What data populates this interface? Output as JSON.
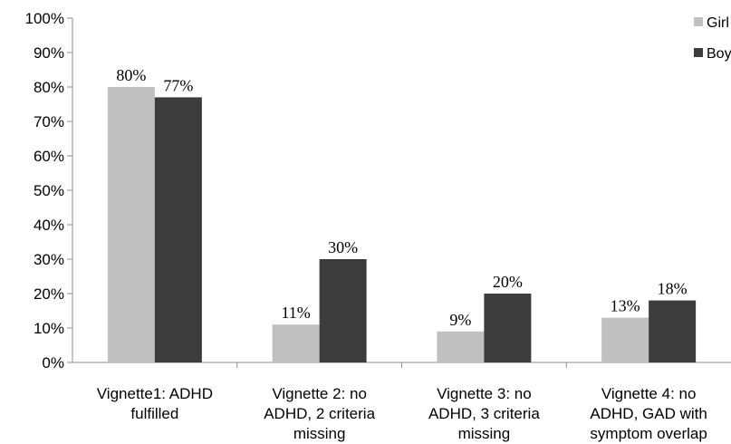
{
  "chart_data": {
    "type": "bar",
    "title": "",
    "xlabel": "",
    "ylabel": "",
    "ylim": [
      0,
      100
    ],
    "yticks": [
      "0%",
      "10%",
      "20%",
      "30%",
      "40%",
      "50%",
      "60%",
      "70%",
      "80%",
      "90%",
      "100%"
    ],
    "categories": [
      [
        "Vignette1: ADHD",
        "fulfilled"
      ],
      [
        "Vignette 2: no",
        "ADHD, 2 criteria",
        "missing"
      ],
      [
        "Vignette 3: no",
        "ADHD, 3 criteria",
        "missing"
      ],
      [
        "Vignette 4: no",
        "ADHD, GAD with",
        "symptom overlap"
      ]
    ],
    "series": [
      {
        "name": "Girl",
        "values": [
          80,
          11,
          9,
          13
        ],
        "labels": [
          "80%",
          "11%",
          "9%",
          "13%"
        ],
        "color": "#c0c0c0"
      },
      {
        "name": "Boy",
        "values": [
          77,
          30,
          20,
          18
        ],
        "labels": [
          "77%",
          "30%",
          "20%",
          "18%"
        ],
        "color": "#3c3c3c"
      }
    ],
    "grid": false,
    "legend": "top-right"
  }
}
